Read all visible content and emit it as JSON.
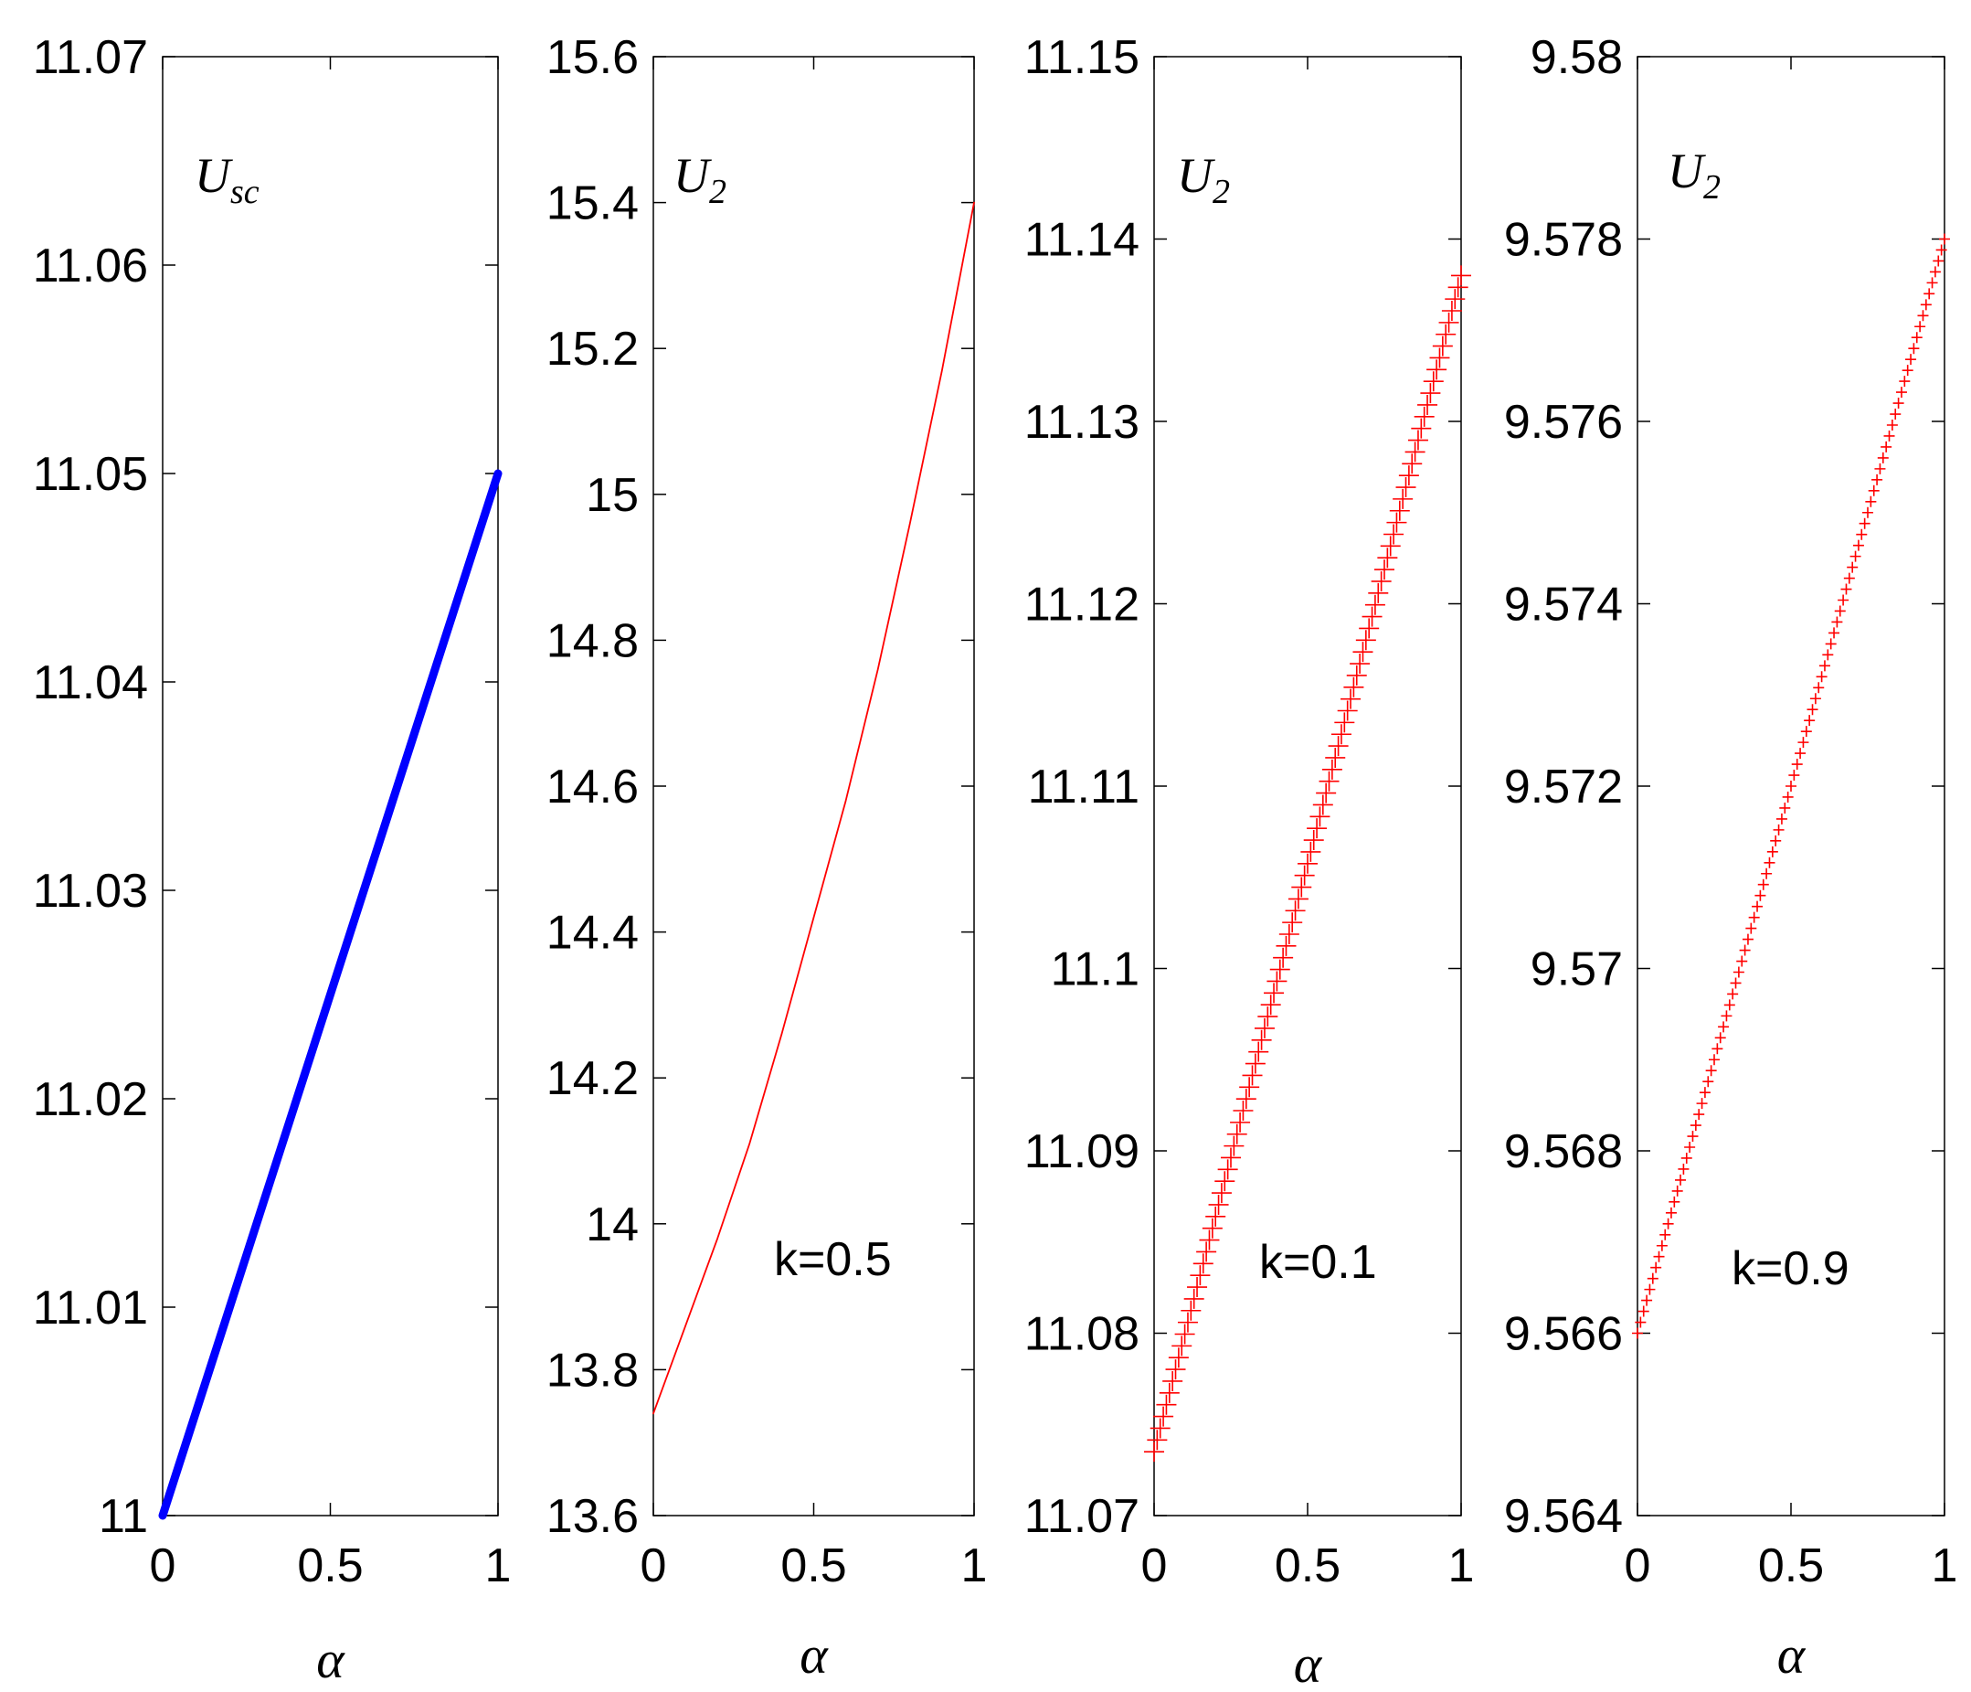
{
  "chart_data": [
    {
      "type": "line",
      "series_label": {
        "main": "U",
        "sub": "sc"
      },
      "annotation": "",
      "xlabel": "α",
      "xlim": [
        0,
        1
      ],
      "ylim": [
        11,
        11.07
      ],
      "xticks": [
        "0",
        "0.5",
        "1"
      ],
      "yticks": [
        "11",
        "11.01",
        "11.02",
        "11.03",
        "11.04",
        "11.05",
        "11.06",
        "11.07"
      ],
      "x": [
        0,
        0.1,
        0.2,
        0.3,
        0.4,
        0.5,
        0.6,
        0.7,
        0.8,
        0.9,
        1.0
      ],
      "series": [
        {
          "values": [
            11.0,
            11.005,
            11.01,
            11.015,
            11.02,
            11.025,
            11.03,
            11.035,
            11.04,
            11.045,
            11.05
          ],
          "color": "#0000ff",
          "style": "thick"
        }
      ]
    },
    {
      "type": "line",
      "series_label": {
        "main": "U",
        "sub": "2"
      },
      "annotation": "k=0.5",
      "xlabel": "α",
      "xlim": [
        0,
        1
      ],
      "ylim": [
        13.6,
        15.6
      ],
      "xticks": [
        "0",
        "0.5",
        "1"
      ],
      "yticks": [
        "13.6",
        "13.8",
        "14",
        "14.2",
        "14.4",
        "14.6",
        "14.8",
        "15",
        "15.2",
        "15.4",
        "15.6"
      ],
      "x": [
        0,
        0.1,
        0.2,
        0.3,
        0.4,
        0.5,
        0.6,
        0.7,
        0.8,
        0.9,
        1.0
      ],
      "series": [
        {
          "values": [
            13.74,
            13.86,
            13.98,
            14.11,
            14.26,
            14.42,
            14.58,
            14.76,
            14.96,
            15.17,
            15.4
          ],
          "color": "#ff0000",
          "style": "thin"
        }
      ]
    },
    {
      "type": "scatter",
      "series_label": {
        "main": "U",
        "sub": "2"
      },
      "annotation": "k=0.1",
      "xlabel": "α",
      "xlim": [
        0,
        1
      ],
      "ylim": [
        11.07,
        11.15
      ],
      "xticks": [
        "0",
        "0.5",
        "1"
      ],
      "yticks": [
        "11.07",
        "11.08",
        "11.09",
        "11.1",
        "11.11",
        "11.12",
        "11.13",
        "11.14",
        "11.15"
      ],
      "x": [
        0,
        1
      ],
      "series": [
        {
          "values": [
            11.0735,
            11.138
          ],
          "color": "#ff0000",
          "style": "plus",
          "marker_size": 22
        }
      ]
    },
    {
      "type": "scatter",
      "series_label": {
        "main": "U",
        "sub": "2"
      },
      "annotation": "k=0.9",
      "xlabel": "α",
      "xlim": [
        0,
        1
      ],
      "ylim": [
        9.564,
        9.58
      ],
      "xticks": [
        "0",
        "0.5",
        "1"
      ],
      "yticks": [
        "9.564",
        "9.566",
        "9.568",
        "9.57",
        "9.572",
        "9.574",
        "9.576",
        "9.578",
        "9.58"
      ],
      "x": [
        0,
        1
      ],
      "series": [
        {
          "values": [
            9.566,
            9.578
          ],
          "color": "#ff0000",
          "style": "plus",
          "marker_size": 12
        }
      ]
    }
  ]
}
